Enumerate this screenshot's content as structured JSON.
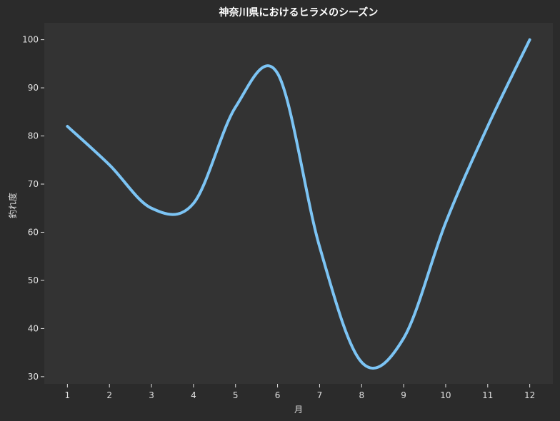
{
  "chart_data": {
    "type": "line",
    "title": "神奈川県におけるヒラメのシーズン",
    "xlabel": "月",
    "ylabel": "釣れ度",
    "x": [
      1,
      2,
      3,
      4,
      5,
      6,
      7,
      8,
      9,
      10,
      11,
      12
    ],
    "xticks": [
      "1",
      "2",
      "3",
      "4",
      "5",
      "6",
      "7",
      "8",
      "9",
      "10",
      "11",
      "12"
    ],
    "yticks": [
      "30",
      "40",
      "50",
      "60",
      "70",
      "80",
      "90",
      "100"
    ],
    "xlim": [
      0.45,
      12.55
    ],
    "ylim": [
      28.5,
      103.5
    ],
    "grid": false,
    "series": [
      {
        "values": [
          82,
          74,
          65,
          66,
          86,
          93,
          57,
          33,
          38,
          62,
          82,
          100
        ],
        "color": "#7cc4f4"
      }
    ],
    "colors": {
      "figure_background": "#2b2b2b",
      "plot_background": "#333333",
      "text": "#e0e0e0",
      "title": "#ffffff"
    }
  }
}
